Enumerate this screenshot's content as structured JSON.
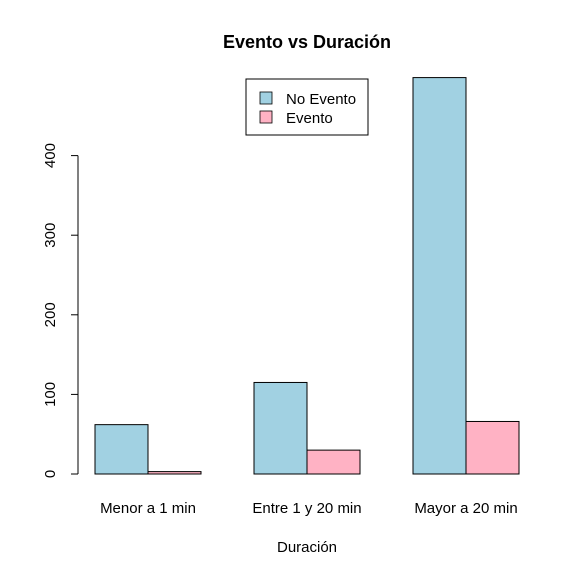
{
  "chart_data": {
    "type": "bar",
    "title": "Evento vs Duración",
    "xlabel": "Duración",
    "ylabel": "",
    "categories": [
      "Menor a 1 min",
      "Entre 1 y 20 min",
      "Mayor a 20 min"
    ],
    "series": [
      {
        "name": "No Evento",
        "color": "#a1d1e2",
        "values": [
          62,
          115,
          498
        ]
      },
      {
        "name": "Evento",
        "color": "#ffb2c4",
        "values": [
          3,
          30,
          66
        ]
      }
    ],
    "ylim": [
      0,
      500
    ],
    "yticks": [
      0,
      100,
      200,
      300,
      400
    ],
    "legend_position": "top-center",
    "grid": false,
    "bar_style": "grouped"
  }
}
